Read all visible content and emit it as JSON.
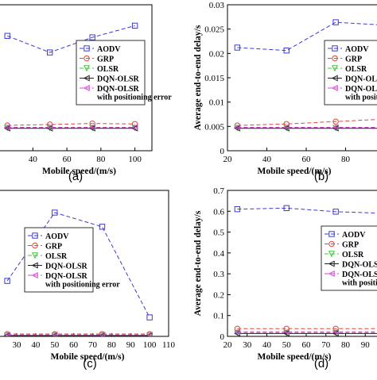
{
  "captions": [
    "(a)",
    "(b)",
    "(c)",
    "(d)"
  ],
  "legend_extra_line": "with positioning error",
  "chart_data": [
    {
      "type": "line",
      "panel": "a",
      "xlabel": "Mobile speed/(m/s)",
      "ylabel": "",
      "xlim": [
        16,
        110
      ],
      "ylim": [
        0,
        0.03
      ],
      "xticks": [
        40,
        60,
        80,
        100
      ],
      "yticks": [],
      "grid": false,
      "legend_position": "right",
      "x": [
        25,
        50,
        75,
        100
      ],
      "series": [
        {
          "name": "AODV",
          "values": [
            0.0236,
            0.0202,
            0.0233,
            0.0257
          ],
          "color": "#3a3ad6",
          "marker": "square",
          "dash": "5,3"
        },
        {
          "name": "GRP",
          "values": [
            0.0052,
            0.0054,
            0.0056,
            0.0055
          ],
          "color": "#d94a3a",
          "marker": "circle",
          "dash": "5,3"
        },
        {
          "name": "OLSR",
          "values": [
            0.0047,
            0.0047,
            0.0047,
            0.0047
          ],
          "color": "#3cc43c",
          "marker": "triangle-down",
          "dash": "5,3"
        },
        {
          "name": "DQN-OLSR",
          "values": [
            0.0046,
            0.0046,
            0.0046,
            0.0046
          ],
          "color": "#222222",
          "marker": "triangle-left",
          "dash": ""
        },
        {
          "name": "DQN-OLSR",
          "values": [
            0.0048,
            0.0048,
            0.0048,
            0.0048
          ],
          "color": "#d24ad2",
          "marker": "triangle-left",
          "dash": "5,3"
        }
      ]
    },
    {
      "type": "line",
      "panel": "b",
      "xlabel": "Mobile speed/(m/s)",
      "ylabel": "Average end-to-end delay/s",
      "xlim": [
        20,
        100
      ],
      "ylim": [
        0,
        0.03
      ],
      "xticks": [
        20,
        40,
        60,
        80
      ],
      "yticks": [
        0,
        0.005,
        0.01,
        0.015,
        0.02,
        0.025,
        0.03
      ],
      "grid": false,
      "legend_position": "right",
      "x": [
        25,
        50,
        75,
        100
      ],
      "series": [
        {
          "name": "AODV",
          "values": [
            0.0212,
            0.0206,
            0.0264,
            0.0258
          ],
          "color": "#3a3ad6",
          "marker": "square",
          "dash": "5,3"
        },
        {
          "name": "GRP",
          "values": [
            0.0052,
            0.0055,
            0.006,
            0.0065
          ],
          "color": "#d94a3a",
          "marker": "circle",
          "dash": "5,3"
        },
        {
          "name": "OLSR",
          "values": [
            0.0047,
            0.0047,
            0.0047,
            0.0047
          ],
          "color": "#3cc43c",
          "marker": "triangle-down",
          "dash": "5,3"
        },
        {
          "name": "DQN-OLSR",
          "values": [
            0.0046,
            0.0046,
            0.0046,
            0.0046
          ],
          "color": "#222222",
          "marker": "triangle-left",
          "dash": ""
        },
        {
          "name": "DQN-OLSR",
          "values": [
            0.0048,
            0.0048,
            0.0048,
            0.0048
          ],
          "color": "#d24ad2",
          "marker": "triangle-left",
          "dash": "5,3"
        }
      ]
    },
    {
      "type": "line",
      "panel": "c",
      "xlabel": "Mobile speed/(m/s)",
      "ylabel": "",
      "xlim": [
        17,
        110
      ],
      "ylim": [
        0,
        1
      ],
      "xticks": [
        30,
        40,
        50,
        60,
        70,
        80,
        90,
        100,
        110
      ],
      "yticks": [],
      "grid": false,
      "legend_position": "right",
      "x": [
        25,
        50,
        75,
        100
      ],
      "series": [
        {
          "name": "AODV",
          "values": [
            0.38,
            0.848,
            0.751,
            0.13
          ],
          "color": "#3a3ad6",
          "marker": "square",
          "dash": "5,3"
        },
        {
          "name": "GRP",
          "values": [
            0.016,
            0.016,
            0.016,
            0.016
          ],
          "color": "#d94a3a",
          "marker": "circle",
          "dash": "5,3"
        },
        {
          "name": "OLSR",
          "values": [
            0.008,
            0.008,
            0.008,
            0.008
          ],
          "color": "#3cc43c",
          "marker": "triangle-down",
          "dash": "5,3"
        },
        {
          "name": "DQN-OLSR",
          "values": [
            0.006,
            0.006,
            0.006,
            0.006
          ],
          "color": "#222222",
          "marker": "triangle-left",
          "dash": ""
        },
        {
          "name": "DQN-OLSR",
          "values": [
            0.01,
            0.01,
            0.01,
            0.01
          ],
          "color": "#d24ad2",
          "marker": "triangle-left",
          "dash": "5,3"
        }
      ]
    },
    {
      "type": "line",
      "panel": "d",
      "xlabel": "Mobile speed/(m/s)",
      "ylabel": "Average end-to-end delay/s",
      "xlim": [
        20,
        100
      ],
      "ylim": [
        0,
        0.7
      ],
      "xticks": [
        20,
        30,
        40,
        50,
        60,
        70,
        80,
        90
      ],
      "yticks": [
        0,
        0.1,
        0.2,
        0.3,
        0.4,
        0.5,
        0.6,
        0.7
      ],
      "grid": false,
      "legend_position": "right",
      "x": [
        25,
        50,
        75,
        100
      ],
      "series": [
        {
          "name": "AODV",
          "values": [
            0.61,
            0.615,
            0.598,
            0.59
          ],
          "color": "#3a3ad6",
          "marker": "square",
          "dash": "5,3"
        },
        {
          "name": "GRP",
          "values": [
            0.037,
            0.037,
            0.037,
            0.037
          ],
          "color": "#d94a3a",
          "marker": "circle",
          "dash": "5,3"
        },
        {
          "name": "OLSR",
          "values": [
            0.018,
            0.018,
            0.018,
            0.018
          ],
          "color": "#3cc43c",
          "marker": "triangle-down",
          "dash": "5,3"
        },
        {
          "name": "DQN-OLSR",
          "values": [
            0.014,
            0.014,
            0.014,
            0.014
          ],
          "color": "#222222",
          "marker": "triangle-left",
          "dash": ""
        },
        {
          "name": "DQN-OLSR",
          "values": [
            0.022,
            0.022,
            0.022,
            0.022
          ],
          "color": "#d24ad2",
          "marker": "triangle-left",
          "dash": "5,3"
        }
      ]
    }
  ]
}
